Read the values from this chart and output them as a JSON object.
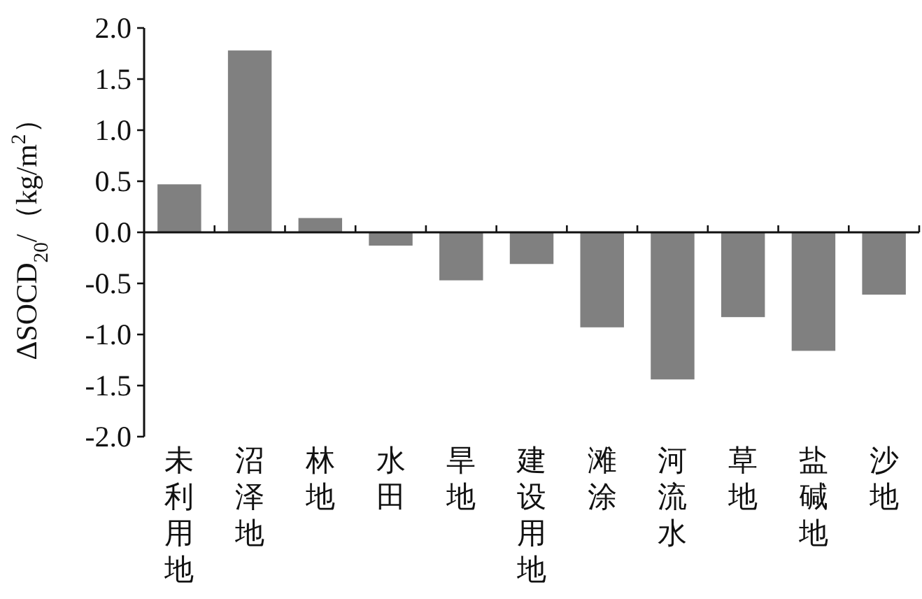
{
  "chart_data": {
    "type": "bar",
    "ylabel": "ΔSOCD$_{20}$/（kg/m$^{2}$）",
    "categories": [
      "未利用地",
      "沼泽地",
      "林地",
      "水田",
      "旱地",
      "建设用地",
      "滩涂",
      "河流水",
      "草地",
      "盐碱地",
      "沙地"
    ],
    "values": [
      0.47,
      1.78,
      0.14,
      -0.13,
      -0.47,
      -0.31,
      -0.93,
      -1.44,
      -0.83,
      -1.16,
      -0.61
    ],
    "color": "#808080",
    "ylim": [
      -2,
      2
    ],
    "yticks": [
      {
        "value": -2,
        "label": "-2.0"
      },
      {
        "value": -1.5,
        "label": "-1.5"
      },
      {
        "value": -1,
        "label": "-1.0"
      },
      {
        "value": -0.5,
        "label": "-0.5"
      },
      {
        "value": 0,
        "label": "0.0"
      },
      {
        "value": 0.5,
        "label": "0.5"
      },
      {
        "value": 1,
        "label": "1.0"
      },
      {
        "value": 1.5,
        "label": "1.5"
      },
      {
        "value": 2,
        "label": "2.0"
      }
    ]
  }
}
